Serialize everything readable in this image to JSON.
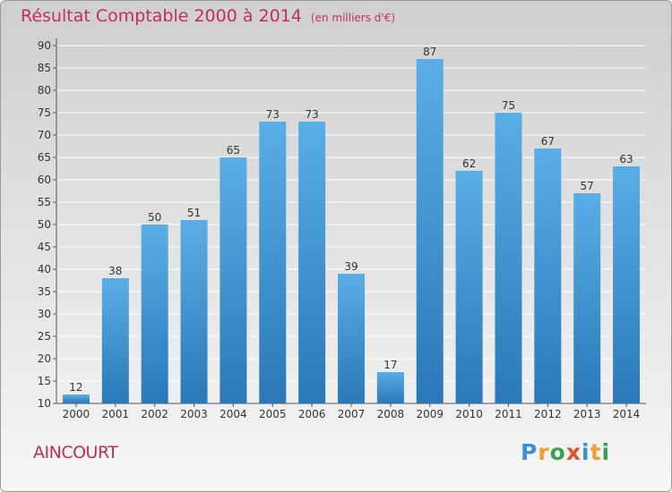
{
  "chart_data": {
    "type": "bar",
    "title": "Résultat Comptable 2000 à 2014",
    "subtitle": "(en milliers d'€)",
    "categories": [
      "2000",
      "2001",
      "2002",
      "2003",
      "2004",
      "2005",
      "2006",
      "2007",
      "2008",
      "2009",
      "2010",
      "2011",
      "2012",
      "2013",
      "2014"
    ],
    "values": [
      12,
      38,
      50,
      51,
      65,
      73,
      73,
      39,
      17,
      87,
      62,
      75,
      67,
      57,
      63
    ],
    "ylim": [
      10,
      90
    ],
    "yticks": [
      10,
      15,
      20,
      25,
      30,
      35,
      40,
      45,
      50,
      55,
      60,
      65,
      70,
      75,
      80,
      85,
      90
    ],
    "xlabel": "",
    "ylabel": "",
    "grid": true,
    "bar_color_top": "#5aaee6",
    "bar_color_bottom": "#2a78b8"
  },
  "footer": {
    "commune": "AINCOURT",
    "logo_letters": [
      "P",
      "r",
      "o",
      "x",
      "i",
      "t",
      "i"
    ],
    "logo_colors": [
      "#3a8fd6",
      "#f0a030",
      "#3aa050",
      "#e05030",
      "#3a8fd6",
      "#f0a030",
      "#3aa050"
    ]
  }
}
